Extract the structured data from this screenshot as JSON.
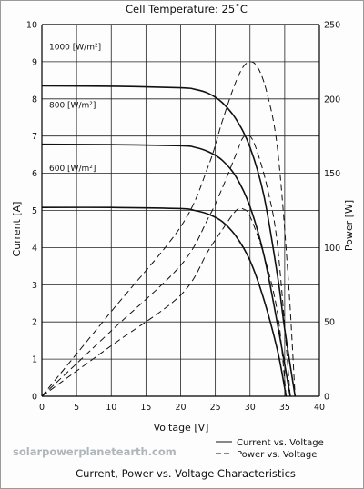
{
  "chart_data": {
    "type": "line",
    "title": "Cell Temperature:  25˚C",
    "subtitle": "Current, Power vs. Voltage Characteristics",
    "xlabel": "Voltage [V]",
    "ylabel_left": "Current [A]",
    "ylabel_right": "Power [W]",
    "xlim": [
      0,
      40
    ],
    "ylim_left": [
      0,
      10
    ],
    "ylim_right": [
      0,
      250
    ],
    "xticks": [
      0,
      5,
      10,
      15,
      20,
      25,
      30,
      35,
      40
    ],
    "yticks_left": [
      0,
      1,
      2,
      3,
      4,
      5,
      6,
      7,
      8,
      9,
      10
    ],
    "yticks_right": [
      0,
      50,
      100,
      150,
      200,
      250
    ],
    "grid": true,
    "legend_position": "bottom-right",
    "legend": [
      {
        "label": "Current vs. Voltage",
        "style": "solid"
      },
      {
        "label": "Power vs. Voltage",
        "style": "dashed"
      }
    ],
    "series": [
      {
        "name": "1000 [W/m²]",
        "current_vs_voltage": {
          "x": [
            0,
            10,
            20,
            22,
            24,
            26,
            28,
            30,
            32,
            34,
            35,
            36.5
          ],
          "y": [
            8.35,
            8.34,
            8.3,
            8.26,
            8.15,
            7.9,
            7.45,
            6.7,
            5.4,
            3.2,
            1.8,
            0
          ]
        },
        "power_vs_voltage": {
          "x": [
            0,
            10,
            20,
            24,
            26,
            28,
            29.5,
            31,
            32.5,
            34,
            35.5,
            36.5
          ],
          "y": [
            0,
            57,
            114,
            155,
            185,
            212,
            224,
            222,
            203,
            165,
            80,
            0
          ]
        }
      },
      {
        "name": "800 [W/m²]",
        "current_vs_voltage": {
          "x": [
            0,
            10,
            20,
            22,
            24,
            26,
            28,
            30,
            32,
            34,
            35.8
          ],
          "y": [
            6.78,
            6.77,
            6.74,
            6.7,
            6.58,
            6.35,
            5.9,
            5.1,
            3.8,
            1.9,
            0
          ]
        },
        "power_vs_voltage": {
          "x": [
            0,
            10,
            20,
            24,
            26,
            28,
            29,
            30,
            31,
            32.5,
            34,
            35.8
          ],
          "y": [
            0,
            44,
            88,
            120,
            140,
            163,
            174,
            175,
            165,
            140,
            100,
            0
          ]
        }
      },
      {
        "name": "600 [W/m²]",
        "current_vs_voltage": {
          "x": [
            0,
            10,
            20,
            22,
            24,
            26,
            28,
            30,
            32,
            34,
            35.2
          ],
          "y": [
            5.08,
            5.08,
            5.05,
            5.0,
            4.9,
            4.7,
            4.3,
            3.65,
            2.6,
            1.2,
            0
          ]
        },
        "power_vs_voltage": {
          "x": [
            0,
            10,
            20,
            24,
            26,
            28,
            29,
            30,
            32,
            34,
            35.2
          ],
          "y": [
            0,
            34,
            68,
            98,
            112,
            125,
            126,
            121,
            95,
            55,
            0
          ]
        }
      }
    ]
  },
  "watermark": "solarpowerplanetearth.com"
}
